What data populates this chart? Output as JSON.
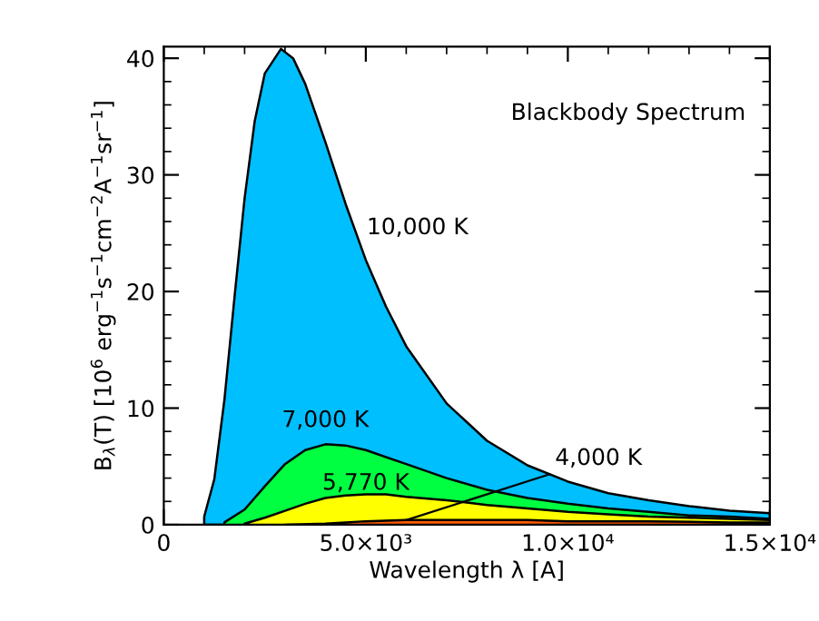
{
  "chart_data": {
    "type": "area",
    "title": "Blackbody Spectrum",
    "xlabel": "Wavelength λ [A]",
    "ylabel": "B$_{λ}$(T) [10$^{6}$ erg$^{−1}$s$^{−1}$cm$^{−2}$A$^{−1}$sr$^{−1}$]",
    "xlim": [
      0,
      15000
    ],
    "ylim": [
      0,
      41
    ],
    "xticks": [
      0,
      {
        "value": 5000,
        "label": "5.0×10³"
      },
      {
        "value": 10000,
        "label": "1.0×10⁴"
      },
      {
        "value": 15000,
        "label": "1.5×10⁴"
      }
    ],
    "yticks": [
      0,
      10,
      20,
      30,
      40
    ],
    "series": [
      {
        "name": "10,000 K",
        "color": "#00bfff",
        "x": [
          1000,
          1250,
          1500,
          1750,
          2000,
          2250,
          2500,
          2900,
          3200,
          3500,
          4000,
          4500,
          5000,
          5500,
          6000,
          7000,
          8000,
          9000,
          10000,
          11000,
          12000,
          13000,
          14000,
          15000
        ],
        "values": [
          0.7,
          3.9,
          10.7,
          19.5,
          28.0,
          34.6,
          38.7,
          40.8,
          40.0,
          37.8,
          32.8,
          27.5,
          22.7,
          18.7,
          15.3,
          10.4,
          7.2,
          5.1,
          3.7,
          2.7,
          2.1,
          1.6,
          1.2,
          1.0
        ]
      },
      {
        "name": "7,000 K",
        "color": "#00ff40",
        "x": [
          1500,
          2000,
          2500,
          3000,
          3500,
          4000,
          4500,
          5000,
          6000,
          7000,
          8000,
          9000,
          10000,
          11000,
          12000,
          13000,
          14000,
          15000
        ],
        "values": [
          0.2,
          1.3,
          3.3,
          5.2,
          6.4,
          6.9,
          6.8,
          6.4,
          5.2,
          4.0,
          3.0,
          2.3,
          1.8,
          1.4,
          1.1,
          0.8,
          0.7,
          0.5
        ]
      },
      {
        "name": "5,770 K",
        "color": "#ffff00",
        "x": [
          2000,
          2500,
          3000,
          3500,
          4000,
          4500,
          5000,
          5500,
          6000,
          7000,
          8000,
          9000,
          10000,
          11000,
          12000,
          13000,
          14000,
          15000
        ],
        "values": [
          0.1,
          0.6,
          1.2,
          1.8,
          2.3,
          2.5,
          2.6,
          2.6,
          2.4,
          2.1,
          1.7,
          1.4,
          1.1,
          0.9,
          0.7,
          0.6,
          0.5,
          0.4
        ]
      },
      {
        "name": "4,000 K",
        "color": "#ff5a00",
        "x": [
          3000,
          4000,
          5000,
          6000,
          7000,
          8000,
          9000,
          10000,
          12000,
          14000,
          15000
        ],
        "values": [
          0.0,
          0.1,
          0.3,
          0.4,
          0.4,
          0.4,
          0.4,
          0.3,
          0.3,
          0.2,
          0.2
        ]
      }
    ]
  }
}
